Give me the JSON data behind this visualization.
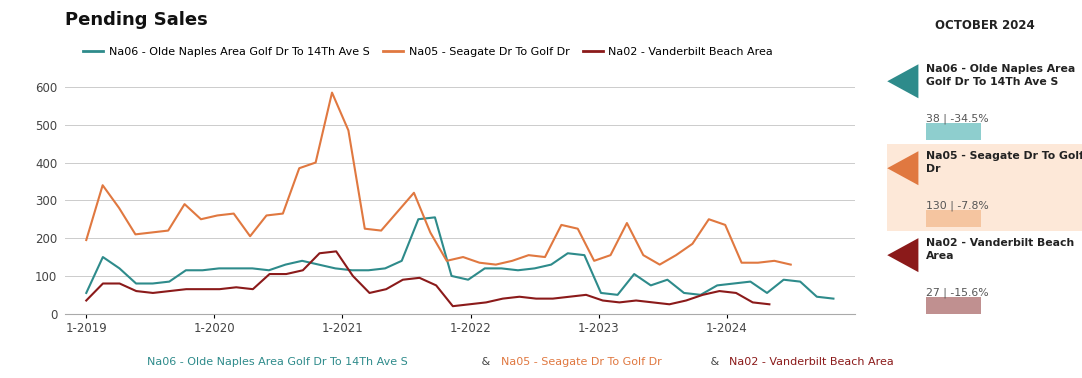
{
  "title": "Pending Sales",
  "background_color": "#ffffff",
  "grid_color": "#cccccc",
  "sidebar_title": "OCTOBER 2024",
  "series": [
    {
      "name": "Na06 - Olde Naples Area Golf Dr To 14Th Ave S",
      "color": "#2e8b8b",
      "sidebar_value": "38 | -34.5%",
      "sidebar_bar_color": "#8ecece",
      "arrow_color": "#2e8b8b",
      "data": [
        55,
        150,
        120,
        80,
        80,
        85,
        115,
        115,
        120,
        120,
        120,
        115,
        130,
        140,
        130,
        120,
        115,
        115,
        120,
        140,
        250,
        255,
        100,
        90,
        120,
        120,
        115,
        120,
        130,
        160,
        155,
        55,
        50,
        105,
        75,
        90,
        55,
        50,
        75,
        80,
        85,
        55,
        90,
        85,
        45,
        40
      ]
    },
    {
      "name": "Na05 - Seagate Dr To Golf Dr",
      "color": "#e07840",
      "sidebar_value": "130 | -7.8%",
      "sidebar_bar_color": "#f5c5a0",
      "arrow_color": "#e07840",
      "data": [
        195,
        340,
        280,
        210,
        215,
        220,
        290,
        250,
        260,
        265,
        205,
        260,
        265,
        385,
        400,
        585,
        485,
        225,
        220,
        270,
        320,
        215,
        140,
        150,
        135,
        130,
        140,
        155,
        150,
        235,
        225,
        140,
        155,
        240,
        155,
        130,
        155,
        185,
        250,
        235,
        135,
        135,
        140,
        130
      ]
    },
    {
      "name": "Na02 - Vanderbilt Beach Area",
      "color": "#8b1a1a",
      "sidebar_value": "27 | -15.6%",
      "sidebar_bar_color": "#c09090",
      "arrow_color": "#8b1a1a",
      "data": [
        35,
        80,
        80,
        60,
        55,
        60,
        65,
        65,
        65,
        70,
        65,
        105,
        105,
        115,
        160,
        165,
        100,
        55,
        65,
        90,
        95,
        75,
        20,
        25,
        30,
        40,
        45,
        40,
        40,
        45,
        50,
        35,
        30,
        35,
        30,
        25,
        35,
        50,
        60,
        55,
        30,
        25
      ]
    }
  ],
  "x_labels": [
    "1-2019",
    "1-2020",
    "1-2021",
    "1-2022",
    "1-2023",
    "1-2024"
  ],
  "ylim": [
    0,
    620
  ],
  "yticks": [
    0,
    100,
    200,
    300,
    400,
    500,
    600
  ],
  "footer_parts": [
    {
      "text": "Na06 - Olde Naples Area Golf Dr To 14Th Ave S",
      "color": "#2e8b8b"
    },
    {
      "text": " & ",
      "color": "#444444"
    },
    {
      "text": "Na05 - Seagate Dr To Golf Dr",
      "color": "#e07840"
    },
    {
      "text": " & ",
      "color": "#444444"
    },
    {
      "text": "Na02 - Vanderbilt Beach Area",
      "color": "#8b1a1a"
    }
  ]
}
